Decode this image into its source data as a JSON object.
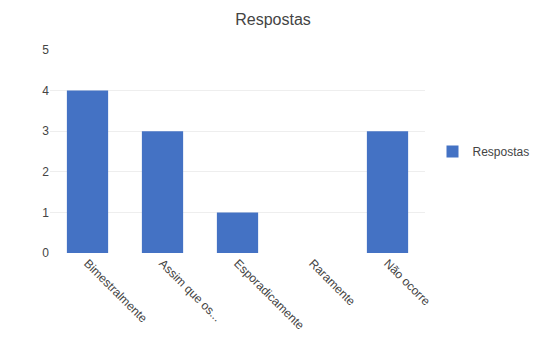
{
  "chart_data": {
    "type": "bar",
    "title": "Respostas",
    "categories": [
      "Bimestralmente",
      "Assim que os...",
      "Esporadicamente",
      "Raramente",
      "Não ocorre"
    ],
    "series": [
      {
        "name": "Respostas",
        "color": "#4472C4",
        "values": [
          4,
          3,
          1,
          0,
          3
        ]
      }
    ],
    "ylim": [
      0,
      5
    ],
    "yticks": [
      0,
      1,
      2,
      3,
      4,
      5
    ],
    "grid": true,
    "legend": "right"
  }
}
